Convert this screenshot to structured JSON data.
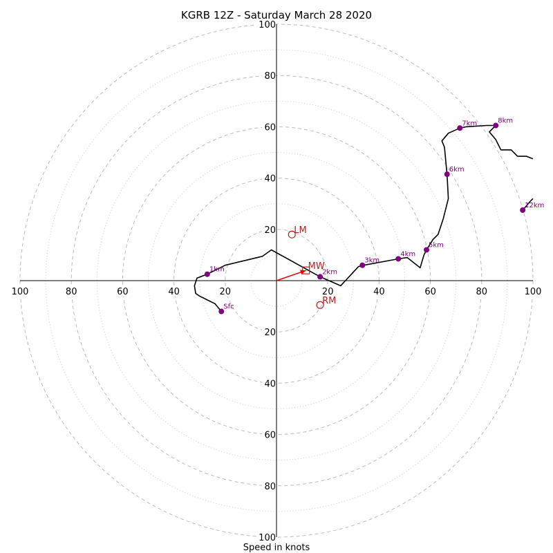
{
  "chart_data": {
    "type": "hodograph",
    "title": "KGRB 12Z - Saturday March 28 2020",
    "xlabel": "Speed in knots",
    "range": 100,
    "ring_step": 10,
    "tick_labels": [
      20,
      40,
      60,
      80,
      100
    ],
    "colors": {
      "trace": "#000000",
      "height_marker": "#800080",
      "motion": "#b22222",
      "mean_wind_vector": "#ee0000",
      "ring_major": "#bbbbbb",
      "ring_minor": "#cccccc"
    },
    "trace": [
      [
        -21.5,
        -12
      ],
      [
        -24,
        -9
      ],
      [
        -30,
        -6
      ],
      [
        -31.5,
        -5
      ],
      [
        -32,
        -2
      ],
      [
        -31,
        1
      ],
      [
        -27,
        2.5
      ],
      [
        -20,
        6
      ],
      [
        -5.5,
        9.5
      ],
      [
        -2,
        12
      ],
      [
        17,
        1.5
      ],
      [
        25,
        -2
      ],
      [
        32,
        5.5
      ],
      [
        34,
        6
      ],
      [
        47.5,
        8.5
      ],
      [
        51,
        9
      ],
      [
        56,
        5
      ],
      [
        57.5,
        10
      ],
      [
        58.5,
        12
      ],
      [
        61,
        16
      ],
      [
        63,
        18
      ],
      [
        65,
        24
      ],
      [
        67,
        32
      ],
      [
        66.5,
        41.5
      ],
      [
        65.5,
        52
      ],
      [
        64.5,
        54.5
      ],
      [
        67,
        57.5
      ],
      [
        71.5,
        59.5
      ],
      [
        74,
        60
      ],
      [
        82,
        60.5
      ],
      [
        85.5,
        60.5
      ],
      [
        83,
        58
      ],
      [
        85.5,
        55
      ],
      [
        87.5,
        51
      ],
      [
        91.5,
        51
      ],
      [
        94,
        48.5
      ],
      [
        97.5,
        48.5
      ],
      [
        100,
        47.5
      ]
    ],
    "trace_upper": [
      [
        96,
        27.5
      ],
      [
        99,
        31
      ],
      [
        100,
        32
      ]
    ],
    "height_markers": [
      {
        "label": "Sfc",
        "u": -21.5,
        "v": -12
      },
      {
        "label": "1km",
        "u": -27,
        "v": 2.5
      },
      {
        "label": "2km",
        "u": 17,
        "v": 1.5
      },
      {
        "label": "3km",
        "u": 33.5,
        "v": 6
      },
      {
        "label": "4km",
        "u": 47.5,
        "v": 8.5
      },
      {
        "label": "5km",
        "u": 58.5,
        "v": 12
      },
      {
        "label": "6km",
        "u": 66.5,
        "v": 41.5
      },
      {
        "label": "7km",
        "u": 71.5,
        "v": 59.5
      },
      {
        "label": "8km",
        "u": 85.5,
        "v": 60.5
      },
      {
        "label": "12km",
        "u": 96,
        "v": 27.5
      }
    ],
    "storm_motion": [
      {
        "label": "LM",
        "u": 6,
        "v": 18,
        "marker": "circle"
      },
      {
        "label": "RM",
        "u": 17,
        "v": -9.5,
        "marker": "circle"
      },
      {
        "label": "MW",
        "u": 11.5,
        "v": 4,
        "marker": "square"
      }
    ],
    "mean_wind_vector": {
      "from": [
        0,
        0
      ],
      "to": [
        11.5,
        4
      ]
    }
  }
}
